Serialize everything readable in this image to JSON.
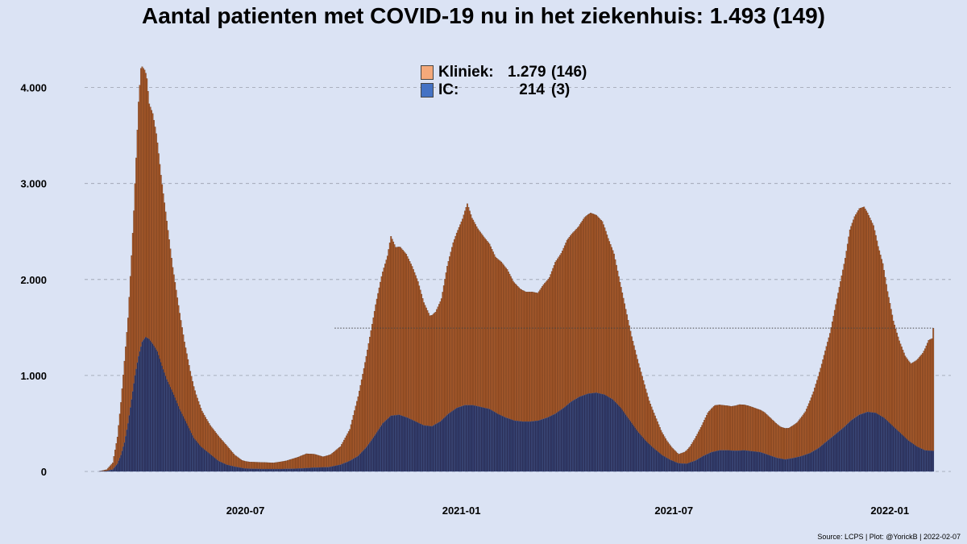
{
  "chart_data": {
    "type": "area",
    "title": "Aantal patienten met COVID-19 nu in het ziekenhuis: 1.493  (149)",
    "caption": "Source: LCPS | Plot: @YorickB |  2022-02-07",
    "yticks": [
      {
        "value": 0,
        "label": "0"
      },
      {
        "value": 1000,
        "label": "1.000"
      },
      {
        "value": 2000,
        "label": "2.000"
      },
      {
        "value": 3000,
        "label": "3.000"
      },
      {
        "value": 4000,
        "label": "4.000"
      }
    ],
    "xticks": [
      {
        "date": "2020-07-01",
        "label": "2020-07"
      },
      {
        "date": "2021-01-01",
        "label": "2021-01"
      },
      {
        "date": "2021-07-01",
        "label": "2021-07"
      },
      {
        "date": "2022-01-01",
        "label": "2022-01"
      }
    ],
    "ylim": [
      0,
      4450
    ],
    "xlim": [
      "2020-02-15",
      "2022-02-22"
    ],
    "grid": true,
    "reference_line": {
      "value": 1493,
      "start": "2020-09-15",
      "end": "2022-02-07"
    },
    "colors": {
      "kliniek": "#a5582a",
      "kliniek_legend": "#f4a97a",
      "ic": "#2b2f58",
      "ic_legend": "#4472c4",
      "background": "#dbe3f4"
    },
    "legend": {
      "position": "top-center",
      "kliniek": {
        "name": "Kliniek:",
        "value": "1.279",
        "prev": "(146)"
      },
      "ic": {
        "name": "IC:",
        "value": "214",
        "prev": "(3)"
      }
    },
    "series": [
      {
        "name": "Kliniek",
        "points": [
          [
            "2020-02-27",
            0
          ],
          [
            "2020-03-05",
            15
          ],
          [
            "2020-03-10",
            70
          ],
          [
            "2020-03-14",
            280
          ],
          [
            "2020-03-17",
            550
          ],
          [
            "2020-03-20",
            850
          ],
          [
            "2020-03-23",
            1100
          ],
          [
            "2020-03-26",
            1500
          ],
          [
            "2020-03-28",
            1800
          ],
          [
            "2020-03-30",
            2200
          ],
          [
            "2020-04-01",
            2650
          ],
          [
            "2020-04-03",
            2900
          ],
          [
            "2020-04-06",
            2800
          ],
          [
            "2020-04-08",
            2700
          ],
          [
            "2020-04-10",
            2450
          ],
          [
            "2020-04-13",
            2400
          ],
          [
            "2020-04-16",
            2250
          ],
          [
            "2020-04-20",
            1950
          ],
          [
            "2020-04-25",
            1650
          ],
          [
            "2020-04-30",
            1300
          ],
          [
            "2020-05-05",
            1050
          ],
          [
            "2020-05-10",
            800
          ],
          [
            "2020-05-15",
            620
          ],
          [
            "2020-05-20",
            480
          ],
          [
            "2020-05-25",
            380
          ],
          [
            "2020-06-01",
            300
          ],
          [
            "2020-06-08",
            260
          ],
          [
            "2020-06-15",
            200
          ],
          [
            "2020-06-22",
            120
          ],
          [
            "2020-06-28",
            80
          ],
          [
            "2020-07-05",
            70
          ],
          [
            "2020-07-15",
            70
          ],
          [
            "2020-07-25",
            65
          ],
          [
            "2020-08-05",
            85
          ],
          [
            "2020-08-15",
            120
          ],
          [
            "2020-08-22",
            150
          ],
          [
            "2020-08-29",
            140
          ],
          [
            "2020-09-05",
            110
          ],
          [
            "2020-09-12",
            130
          ],
          [
            "2020-09-20",
            190
          ],
          [
            "2020-09-28",
            330
          ],
          [
            "2020-10-05",
            620
          ],
          [
            "2020-10-10",
            850
          ],
          [
            "2020-10-15",
            1100
          ],
          [
            "2020-10-20",
            1350
          ],
          [
            "2020-10-25",
            1550
          ],
          [
            "2020-10-30",
            1700
          ],
          [
            "2020-11-02",
            1870
          ],
          [
            "2020-11-06",
            1750
          ],
          [
            "2020-11-10",
            1750
          ],
          [
            "2020-11-15",
            1700
          ],
          [
            "2020-11-20",
            1600
          ],
          [
            "2020-11-25",
            1470
          ],
          [
            "2020-11-30",
            1280
          ],
          [
            "2020-12-05",
            1150
          ],
          [
            "2020-12-10",
            1170
          ],
          [
            "2020-12-15",
            1270
          ],
          [
            "2020-12-20",
            1550
          ],
          [
            "2020-12-25",
            1750
          ],
          [
            "2020-12-29",
            1850
          ],
          [
            "2021-01-02",
            1950
          ],
          [
            "2021-01-06",
            2100
          ],
          [
            "2021-01-10",
            1950
          ],
          [
            "2021-01-15",
            1850
          ],
          [
            "2021-01-20",
            1780
          ],
          [
            "2021-01-25",
            1720
          ],
          [
            "2021-01-30",
            1620
          ],
          [
            "2021-02-04",
            1600
          ],
          [
            "2021-02-09",
            1550
          ],
          [
            "2021-02-14",
            1450
          ],
          [
            "2021-02-20",
            1380
          ],
          [
            "2021-02-25",
            1350
          ],
          [
            "2021-03-02",
            1350
          ],
          [
            "2021-03-07",
            1330
          ],
          [
            "2021-03-12",
            1400
          ],
          [
            "2021-03-17",
            1450
          ],
          [
            "2021-03-22",
            1580
          ],
          [
            "2021-03-27",
            1630
          ],
          [
            "2021-04-01",
            1720
          ],
          [
            "2021-04-06",
            1750
          ],
          [
            "2021-04-11",
            1780
          ],
          [
            "2021-04-16",
            1850
          ],
          [
            "2021-04-21",
            1880
          ],
          [
            "2021-04-26",
            1850
          ],
          [
            "2021-05-01",
            1800
          ],
          [
            "2021-05-06",
            1650
          ],
          [
            "2021-05-11",
            1530
          ],
          [
            "2021-05-16",
            1300
          ],
          [
            "2021-05-21",
            1100
          ],
          [
            "2021-05-26",
            900
          ],
          [
            "2021-05-31",
            750
          ],
          [
            "2021-06-05",
            600
          ],
          [
            "2021-06-10",
            450
          ],
          [
            "2021-06-15",
            350
          ],
          [
            "2021-06-20",
            250
          ],
          [
            "2021-06-25",
            180
          ],
          [
            "2021-06-30",
            130
          ],
          [
            "2021-07-05",
            95
          ],
          [
            "2021-07-10",
            120
          ],
          [
            "2021-07-15",
            170
          ],
          [
            "2021-07-20",
            250
          ],
          [
            "2021-07-25",
            330
          ],
          [
            "2021-07-30",
            430
          ],
          [
            "2021-08-05",
            480
          ],
          [
            "2021-08-12",
            470
          ],
          [
            "2021-08-19",
            460
          ],
          [
            "2021-08-26",
            480
          ],
          [
            "2021-09-02",
            470
          ],
          [
            "2021-09-09",
            450
          ],
          [
            "2021-09-16",
            430
          ],
          [
            "2021-09-23",
            380
          ],
          [
            "2021-09-30",
            330
          ],
          [
            "2021-10-07",
            320
          ],
          [
            "2021-10-14",
            360
          ],
          [
            "2021-10-21",
            450
          ],
          [
            "2021-10-28",
            620
          ],
          [
            "2021-11-04",
            850
          ],
          [
            "2021-11-11",
            1100
          ],
          [
            "2021-11-18",
            1450
          ],
          [
            "2021-11-24",
            1750
          ],
          [
            "2021-11-28",
            2000
          ],
          [
            "2021-12-02",
            2100
          ],
          [
            "2021-12-06",
            2150
          ],
          [
            "2021-12-10",
            2150
          ],
          [
            "2021-12-14",
            2050
          ],
          [
            "2021-12-18",
            1950
          ],
          [
            "2021-12-22",
            1750
          ],
          [
            "2021-12-26",
            1600
          ],
          [
            "2021-12-30",
            1350
          ],
          [
            "2022-01-04",
            1100
          ],
          [
            "2022-01-09",
            950
          ],
          [
            "2022-01-14",
            850
          ],
          [
            "2022-01-19",
            820
          ],
          [
            "2022-01-24",
            900
          ],
          [
            "2022-01-29",
            1000
          ],
          [
            "2022-02-03",
            1150
          ],
          [
            "2022-02-06",
            1170
          ],
          [
            "2022-02-07",
            1279
          ]
        ]
      },
      {
        "name": "IC",
        "points": [
          [
            "2020-02-27",
            0
          ],
          [
            "2020-03-05",
            5
          ],
          [
            "2020-03-10",
            20
          ],
          [
            "2020-03-14",
            80
          ],
          [
            "2020-03-17",
            170
          ],
          [
            "2020-03-20",
            300
          ],
          [
            "2020-03-23",
            500
          ],
          [
            "2020-03-26",
            750
          ],
          [
            "2020-03-29",
            1000
          ],
          [
            "2020-04-01",
            1200
          ],
          [
            "2020-04-04",
            1350
          ],
          [
            "2020-04-07",
            1400
          ],
          [
            "2020-04-10",
            1380
          ],
          [
            "2020-04-13",
            1330
          ],
          [
            "2020-04-17",
            1250
          ],
          [
            "2020-04-21",
            1100
          ],
          [
            "2020-04-25",
            960
          ],
          [
            "2020-05-01",
            800
          ],
          [
            "2020-05-06",
            650
          ],
          [
            "2020-05-12",
            500
          ],
          [
            "2020-05-18",
            350
          ],
          [
            "2020-05-24",
            260
          ],
          [
            "2020-06-01",
            180
          ],
          [
            "2020-06-08",
            110
          ],
          [
            "2020-06-15",
            70
          ],
          [
            "2020-06-22",
            50
          ],
          [
            "2020-07-01",
            30
          ],
          [
            "2020-07-15",
            25
          ],
          [
            "2020-08-01",
            25
          ],
          [
            "2020-08-15",
            30
          ],
          [
            "2020-08-29",
            40
          ],
          [
            "2020-09-10",
            45
          ],
          [
            "2020-09-20",
            70
          ],
          [
            "2020-09-28",
            110
          ],
          [
            "2020-10-05",
            160
          ],
          [
            "2020-10-12",
            250
          ],
          [
            "2020-10-19",
            370
          ],
          [
            "2020-10-26",
            500
          ],
          [
            "2020-11-02",
            580
          ],
          [
            "2020-11-09",
            590
          ],
          [
            "2020-11-16",
            560
          ],
          [
            "2020-11-23",
            520
          ],
          [
            "2020-11-30",
            480
          ],
          [
            "2020-12-07",
            470
          ],
          [
            "2020-12-14",
            520
          ],
          [
            "2020-12-21",
            600
          ],
          [
            "2020-12-28",
            660
          ],
          [
            "2021-01-04",
            690
          ],
          [
            "2021-01-11",
            690
          ],
          [
            "2021-01-18",
            670
          ],
          [
            "2021-01-25",
            650
          ],
          [
            "2021-02-01",
            600
          ],
          [
            "2021-02-08",
            560
          ],
          [
            "2021-02-15",
            530
          ],
          [
            "2021-02-22",
            520
          ],
          [
            "2021-03-01",
            520
          ],
          [
            "2021-03-08",
            530
          ],
          [
            "2021-03-15",
            560
          ],
          [
            "2021-03-22",
            600
          ],
          [
            "2021-03-29",
            660
          ],
          [
            "2021-04-05",
            730
          ],
          [
            "2021-04-12",
            780
          ],
          [
            "2021-04-19",
            810
          ],
          [
            "2021-04-26",
            820
          ],
          [
            "2021-05-03",
            800
          ],
          [
            "2021-05-10",
            750
          ],
          [
            "2021-05-17",
            660
          ],
          [
            "2021-05-24",
            540
          ],
          [
            "2021-05-31",
            420
          ],
          [
            "2021-06-07",
            320
          ],
          [
            "2021-06-14",
            240
          ],
          [
            "2021-06-21",
            170
          ],
          [
            "2021-06-28",
            120
          ],
          [
            "2021-07-05",
            85
          ],
          [
            "2021-07-12",
            80
          ],
          [
            "2021-07-19",
            110
          ],
          [
            "2021-07-26",
            160
          ],
          [
            "2021-08-02",
            200
          ],
          [
            "2021-08-09",
            220
          ],
          [
            "2021-08-16",
            220
          ],
          [
            "2021-08-23",
            215
          ],
          [
            "2021-08-30",
            220
          ],
          [
            "2021-09-06",
            210
          ],
          [
            "2021-09-13",
            200
          ],
          [
            "2021-09-20",
            170
          ],
          [
            "2021-09-27",
            140
          ],
          [
            "2021-10-04",
            125
          ],
          [
            "2021-10-11",
            140
          ],
          [
            "2021-10-18",
            160
          ],
          [
            "2021-10-25",
            190
          ],
          [
            "2021-11-01",
            240
          ],
          [
            "2021-11-08",
            310
          ],
          [
            "2021-11-15",
            380
          ],
          [
            "2021-11-22",
            450
          ],
          [
            "2021-11-29",
            530
          ],
          [
            "2021-12-06",
            590
          ],
          [
            "2021-12-13",
            620
          ],
          [
            "2021-12-20",
            610
          ],
          [
            "2021-12-27",
            560
          ],
          [
            "2022-01-03",
            480
          ],
          [
            "2022-01-10",
            400
          ],
          [
            "2022-01-17",
            320
          ],
          [
            "2022-01-24",
            260
          ],
          [
            "2022-01-31",
            220
          ],
          [
            "2022-02-07",
            214
          ]
        ]
      }
    ]
  }
}
